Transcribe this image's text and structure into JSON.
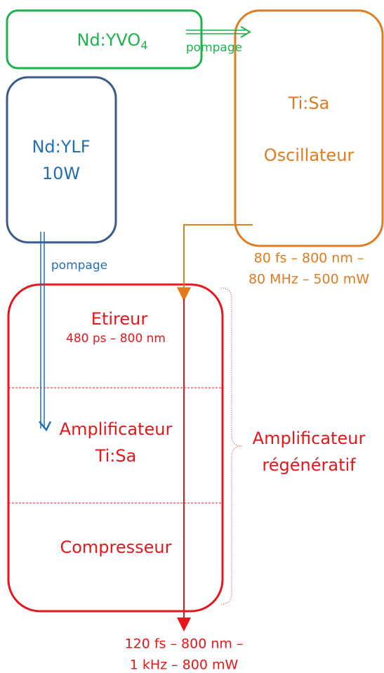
{
  "nodes": [
    {
      "label": "Nd:YVO",
      "subscript": "4"
    },
    {
      "lines": [
        "Nd:YLF",
        "10W"
      ]
    },
    {
      "lines": [
        "Ti:Sa",
        "Oscillateur"
      ]
    },
    {
      "sections": [
        {
          "title": "Etireur",
          "detail": "480 ps – 800 nm"
        },
        {
          "lines": [
            "Amplificateur",
            "Ti:Sa"
          ]
        },
        {
          "lines": [
            "Compresseur"
          ]
        }
      ]
    }
  ],
  "pump_labels": [
    "pompage",
    "pompage"
  ],
  "oscillator_output": [
    "80 fs – 800 nm –",
    "80 MHz – 500 mW"
  ],
  "amplifier_label": [
    "Amplificateur",
    "régénératif"
  ],
  "final_output": [
    "120 fs – 800 nm –",
    "1 kHz – 800 mW"
  ]
}
